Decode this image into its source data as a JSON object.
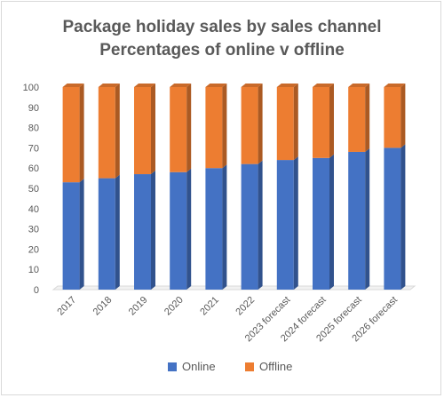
{
  "chart_data": {
    "type": "bar",
    "stacked": true,
    "title_line1": "Package holiday sales by sales channel",
    "title_line2": "Percentages of online v offline",
    "categories": [
      "2017",
      "2018",
      "2019",
      "2020",
      "2021",
      "2022",
      "2023 forecast",
      "2024 forecast",
      "2025 forecast",
      "2026 forecast"
    ],
    "series": [
      {
        "name": "Online",
        "color": "#4472C4",
        "values": [
          53,
          55,
          57,
          58,
          60,
          62,
          64,
          65,
          68,
          70
        ]
      },
      {
        "name": "Offline",
        "color": "#ED7D31",
        "values": [
          47,
          45,
          43,
          42,
          40,
          38,
          36,
          35,
          32,
          30
        ]
      }
    ],
    "ylim": [
      0,
      100
    ],
    "yticks": [
      "0",
      "10",
      "20",
      "30",
      "40",
      "50",
      "60",
      "70",
      "80",
      "90",
      "100"
    ],
    "grid": false,
    "legend": "bottom"
  }
}
